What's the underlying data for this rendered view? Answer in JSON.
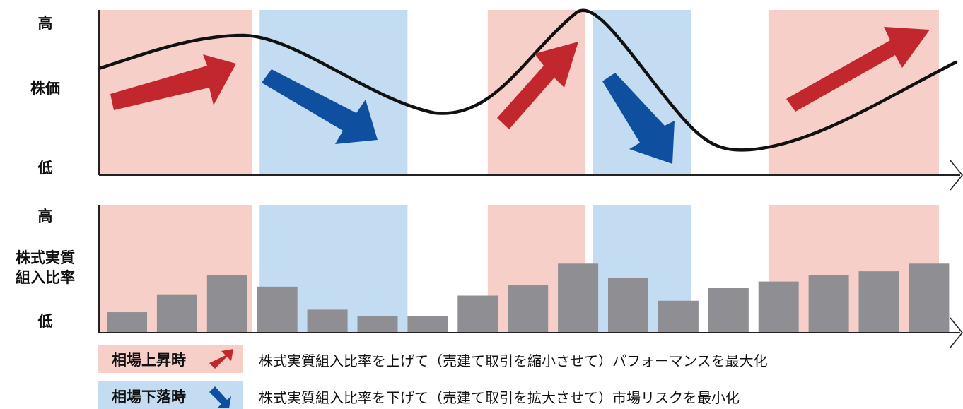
{
  "colors": {
    "rise_zone": "#f7cfc9",
    "fall_zone": "#c3dcf2",
    "rise_arrow": "#c1272d",
    "fall_arrow": "#0f4fa0",
    "bar": "#8f8f93",
    "curve": "#111111",
    "axis": "#222222"
  },
  "top_panel": {
    "high": "高",
    "label": "株価",
    "low": "低"
  },
  "bottom_panel": {
    "high": "高",
    "label_line1": "株式実質",
    "label_line2": "組入比率",
    "low": "低"
  },
  "legend": {
    "rise": {
      "tag": "相場上昇時",
      "text": "株式実質組入比率を上げて（売建て取引を縮小させて）パフォーマンスを最大化",
      "icon": "up-right-arrow-icon"
    },
    "fall": {
      "tag": "相場下落時",
      "text": "株式実質組入比率を下げて（売建て取引を拡大させて）市場リスクを最小化",
      "icon": "down-right-arrow-icon"
    }
  },
  "chart_data": {
    "type": "bar",
    "description_free": true,
    "ylim": [
      0,
      100
    ],
    "zones": [
      {
        "kind": "rise",
        "from": 0,
        "to": 2.9
      },
      {
        "kind": "fall",
        "from": 3.05,
        "to": 6.0
      },
      {
        "kind": "rise",
        "from": 7.6,
        "to": 9.55
      },
      {
        "kind": "fall",
        "from": 9.7,
        "to": 11.65
      },
      {
        "kind": "rise",
        "from": 13.2,
        "to": 16.6
      }
    ],
    "values": [
      16,
      30,
      45,
      36,
      18,
      13,
      13,
      29,
      37,
      54,
      43,
      25,
      35,
      40,
      45,
      48,
      54
    ]
  }
}
